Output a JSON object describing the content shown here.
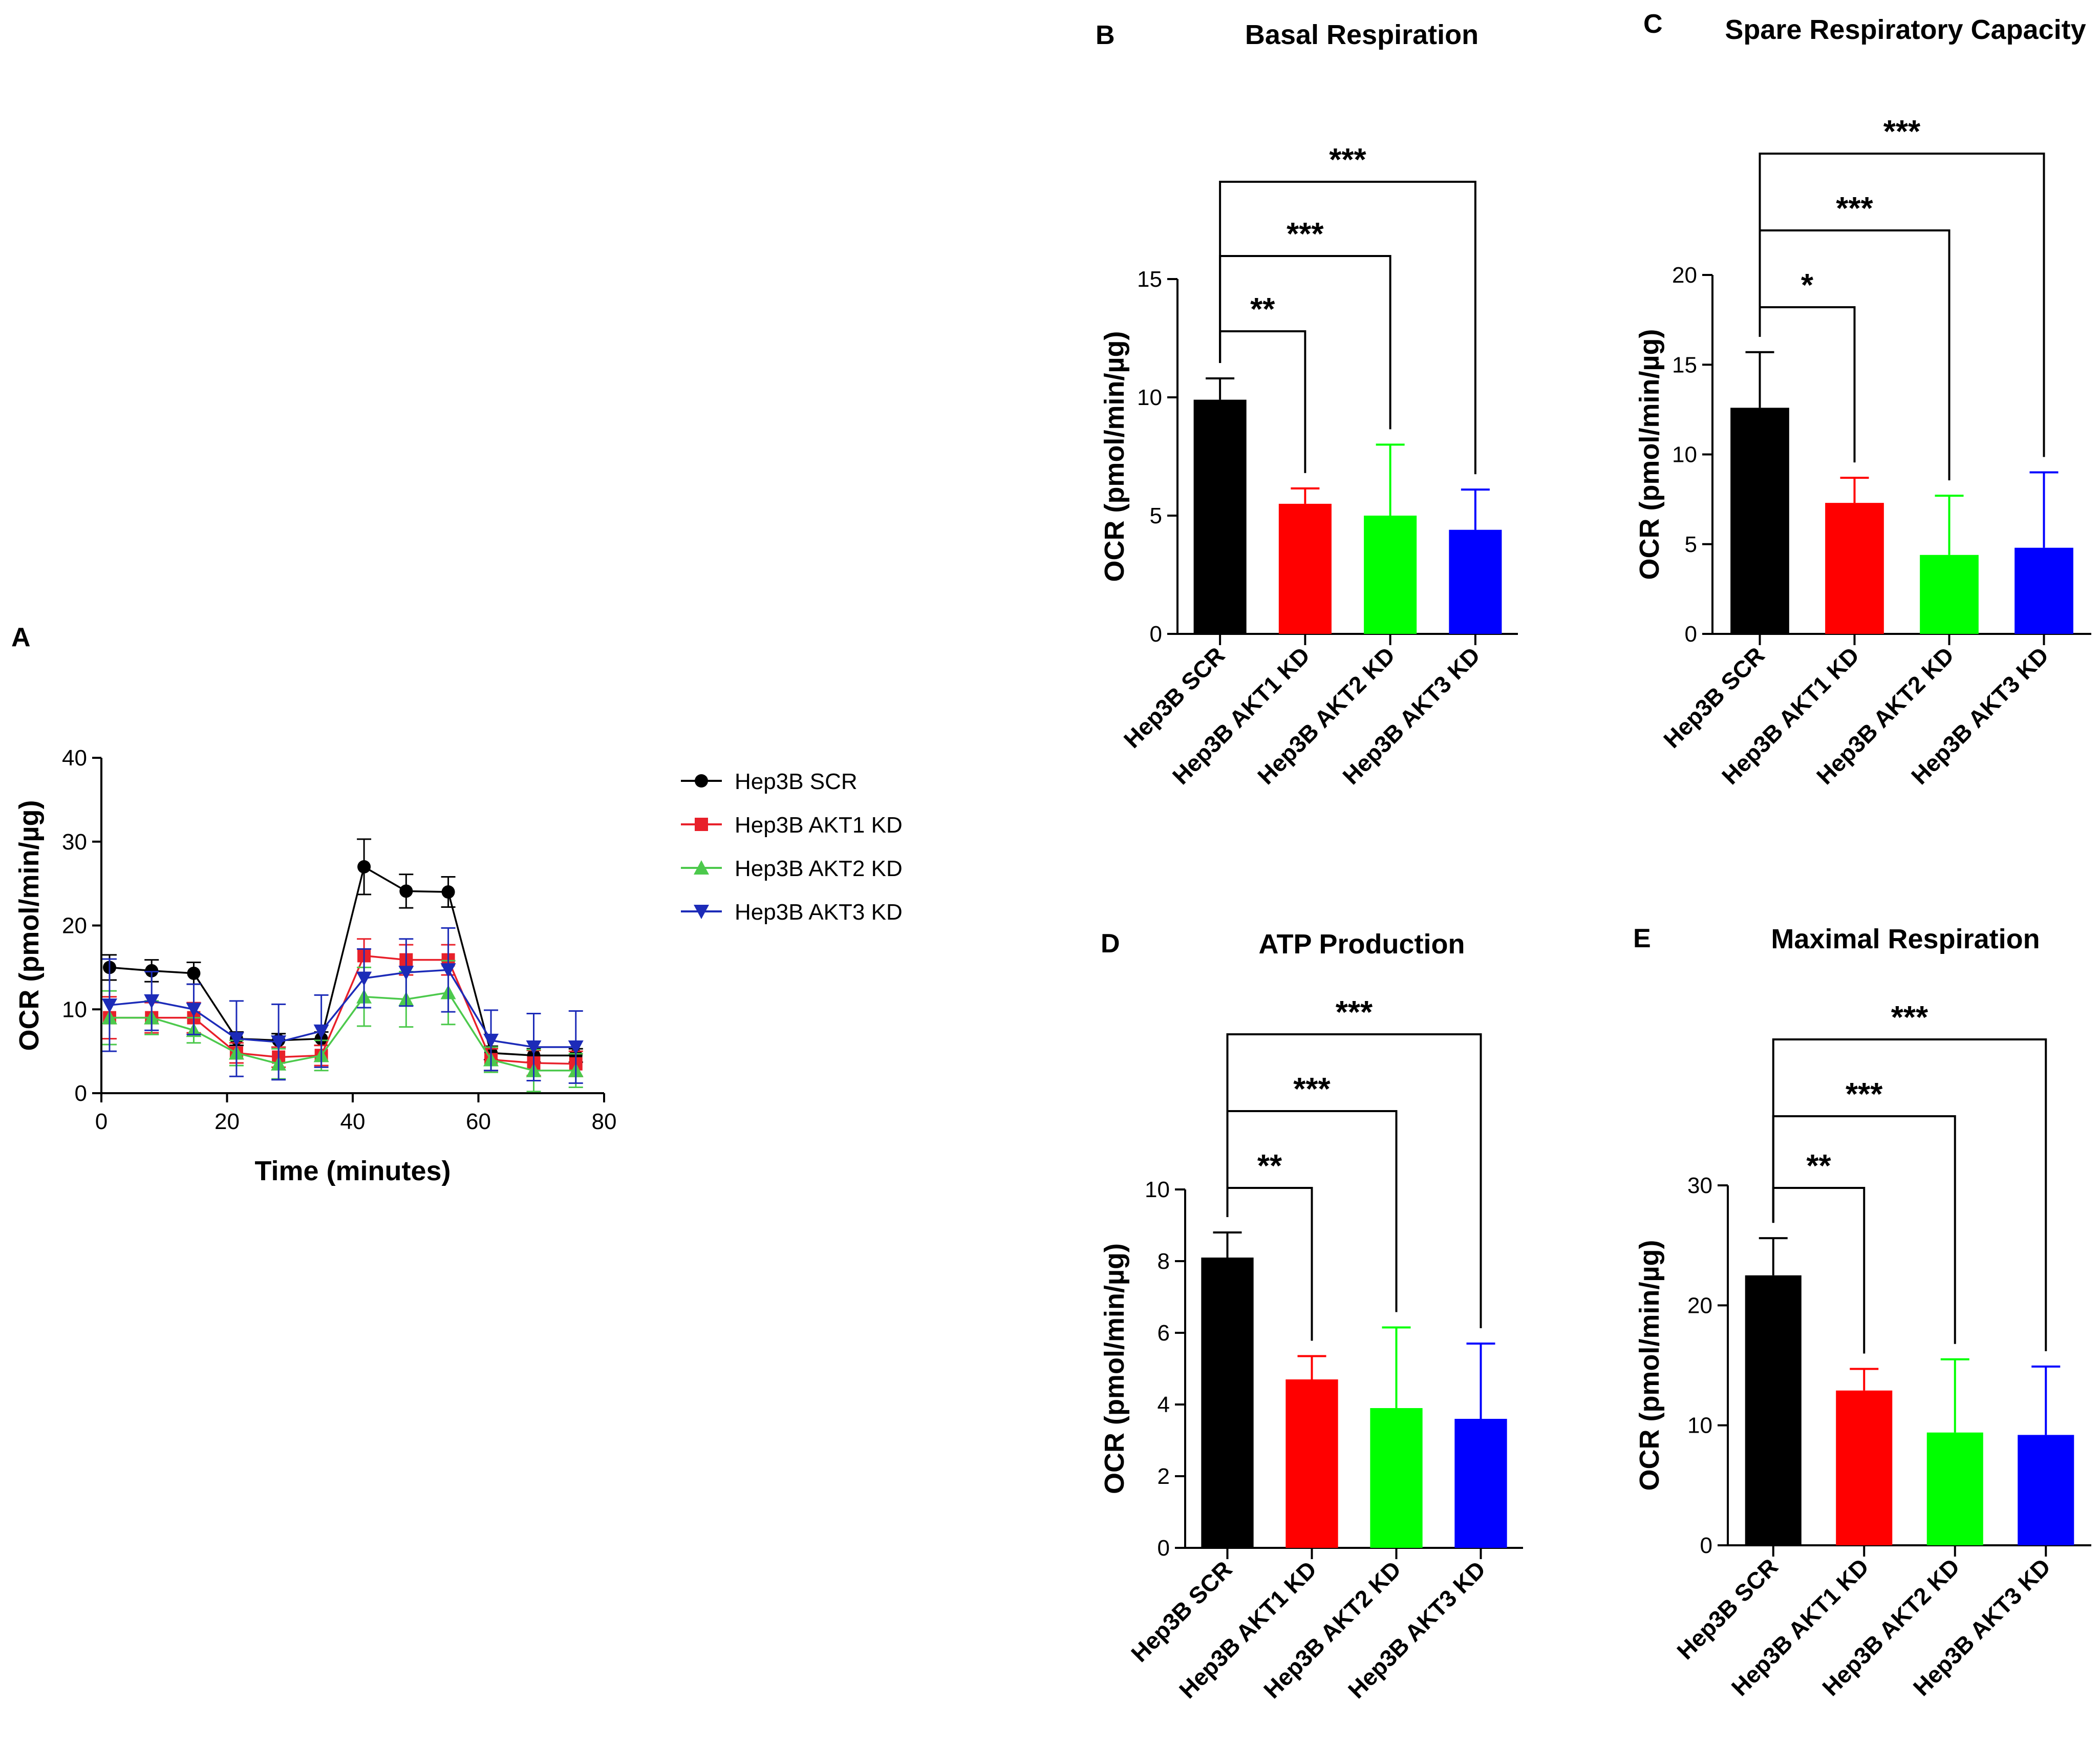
{
  "figure": {
    "panels": [
      {
        "letter": "A"
      },
      {
        "letter": "B"
      },
      {
        "letter": "C"
      },
      {
        "letter": "D"
      },
      {
        "letter": "E"
      }
    ]
  },
  "colors": {
    "Hep3B SCR": "#000000",
    "Hep3B AKT1 KD": "#ff0000",
    "Hep3B AKT2 KD": "#00ff00",
    "Hep3B AKT3 KD": "#0000ff",
    "line_SCR": "#000000",
    "line_AKT1": "#e8202a",
    "line_AKT2": "#4cc94c",
    "line_AKT3": "#1c2bb8"
  },
  "chart_data": [
    {
      "type": "line",
      "panel": "A",
      "title": "",
      "xlabel": "Time (minutes)",
      "ylabel": "OCR (pmol/min/µg)",
      "xlim": [
        0,
        80
      ],
      "ylim": [
        0,
        40
      ],
      "xticks": [
        0,
        20,
        40,
        60,
        80
      ],
      "yticks": [
        0,
        10,
        20,
        30,
        40
      ],
      "legend_position": "right",
      "x": [
        1.3,
        8.0,
        14.7,
        21.5,
        28.2,
        35.0,
        41.8,
        48.5,
        55.2,
        62.0,
        68.8,
        75.5
      ],
      "series": [
        {
          "name": "Hep3B SCR",
          "marker": "circle",
          "values": [
            15.0,
            14.6,
            14.3,
            6.5,
            6.3,
            6.5,
            27.0,
            24.1,
            24.0,
            4.8,
            4.5,
            4.5
          ],
          "errors": [
            1.5,
            1.3,
            1.3,
            0.8,
            0.8,
            0.8,
            3.3,
            2.0,
            1.8,
            0.8,
            0.8,
            0.8
          ]
        },
        {
          "name": "Hep3B AKT1 KD",
          "marker": "square",
          "values": [
            9.0,
            9.0,
            9.0,
            4.8,
            4.3,
            4.5,
            16.4,
            15.9,
            15.9,
            4.0,
            3.6,
            3.5
          ],
          "errors": [
            2.5,
            1.8,
            1.8,
            1.2,
            1.2,
            1.2,
            2.0,
            1.8,
            1.8,
            1.3,
            1.5,
            1.5
          ]
        },
        {
          "name": "Hep3B AKT2 KD",
          "marker": "triangle-up",
          "values": [
            9.0,
            9.0,
            7.5,
            4.8,
            3.5,
            4.5,
            11.5,
            11.2,
            12.0,
            4.0,
            2.7,
            2.7
          ],
          "errors": [
            3.2,
            2.0,
            1.5,
            1.5,
            1.8,
            1.8,
            3.5,
            3.3,
            3.8,
            1.5,
            2.5,
            2.0
          ]
        },
        {
          "name": "Hep3B AKT3 KD",
          "marker": "triangle-down",
          "values": [
            10.5,
            11.0,
            10.0,
            6.5,
            6.1,
            7.4,
            13.7,
            14.4,
            14.7,
            6.3,
            5.5,
            5.5
          ],
          "errors": [
            5.5,
            3.5,
            3.0,
            4.5,
            4.5,
            4.3,
            3.5,
            4.0,
            5.0,
            3.6,
            4.0,
            4.3
          ]
        }
      ]
    },
    {
      "type": "bar",
      "panel": "B",
      "title": "Basal Respiration",
      "xlabel": "",
      "ylabel": "OCR (pmol/min/µg)",
      "categories": [
        "Hep3B SCR",
        "Hep3B AKT1 KD",
        "Hep3B AKT2 KD",
        "Hep3B AKT3 KD"
      ],
      "values": [
        9.9,
        5.5,
        5.0,
        4.4
      ],
      "errors": [
        0.9,
        0.65,
        3.0,
        1.7
      ],
      "ylim": [
        0,
        15
      ],
      "yticks": [
        0,
        5,
        10,
        15
      ],
      "significance": [
        {
          "from": 0,
          "to": 1,
          "label": "**"
        },
        {
          "from": 0,
          "to": 2,
          "label": "***"
        },
        {
          "from": 0,
          "to": 3,
          "label": "***"
        }
      ]
    },
    {
      "type": "bar",
      "panel": "C",
      "title": "Spare Respiratory Capacity",
      "xlabel": "",
      "ylabel": "OCR (pmol/min/µg)",
      "categories": [
        "Hep3B SCR",
        "Hep3B AKT1 KD",
        "Hep3B AKT2 KD",
        "Hep3B AKT3 KD"
      ],
      "values": [
        12.6,
        7.3,
        4.4,
        4.8
      ],
      "errors": [
        3.1,
        1.4,
        3.3,
        4.2
      ],
      "ylim": [
        0,
        20
      ],
      "yticks": [
        0,
        5,
        10,
        15,
        20
      ],
      "significance": [
        {
          "from": 0,
          "to": 1,
          "label": "*"
        },
        {
          "from": 0,
          "to": 2,
          "label": "***"
        },
        {
          "from": 0,
          "to": 3,
          "label": "***"
        }
      ]
    },
    {
      "type": "bar",
      "panel": "D",
      "title": "ATP Production",
      "xlabel": "",
      "ylabel": "OCR (pmol/min/µg)",
      "categories": [
        "Hep3B SCR",
        "Hep3B AKT1 KD",
        "Hep3B AKT2 KD",
        "Hep3B AKT3 KD"
      ],
      "values": [
        8.1,
        4.7,
        3.9,
        3.6
      ],
      "errors": [
        0.7,
        0.65,
        2.25,
        2.1
      ],
      "ylim": [
        0,
        10
      ],
      "yticks": [
        0,
        2,
        4,
        6,
        8,
        10
      ],
      "significance": [
        {
          "from": 0,
          "to": 1,
          "label": "**"
        },
        {
          "from": 0,
          "to": 2,
          "label": "***"
        },
        {
          "from": 0,
          "to": 3,
          "label": "***"
        }
      ]
    },
    {
      "type": "bar",
      "panel": "E",
      "title": "Maximal Respiration",
      "xlabel": "",
      "ylabel": "OCR (pmol/min/µg)",
      "categories": [
        "Hep3B SCR",
        "Hep3B AKT1 KD",
        "Hep3B AKT2 KD",
        "Hep3B AKT3 KD"
      ],
      "values": [
        22.5,
        12.9,
        9.4,
        9.2
      ],
      "errors": [
        3.1,
        1.8,
        6.1,
        5.7
      ],
      "ylim": [
        0,
        30
      ],
      "yticks": [
        0,
        10,
        20,
        30
      ],
      "significance": [
        {
          "from": 0,
          "to": 1,
          "label": "**"
        },
        {
          "from": 0,
          "to": 2,
          "label": "***"
        },
        {
          "from": 0,
          "to": 3,
          "label": "***"
        }
      ]
    }
  ]
}
